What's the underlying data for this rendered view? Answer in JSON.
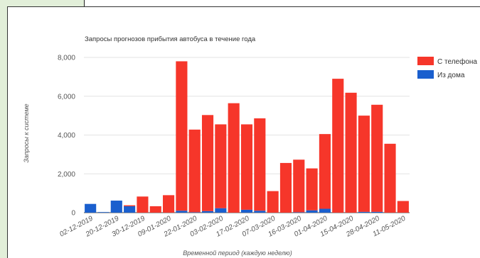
{
  "chart_data": {
    "type": "bar",
    "stacked": true,
    "title": "Запросы прогнозов прибытия автобуса в течение года",
    "xlabel": "Временной период (каждую неделю)",
    "ylabel": "Запросы к системе",
    "ylim": [
      0,
      8000
    ],
    "yticks": [
      "0",
      "2,000",
      "4,000",
      "6,000",
      "8,000"
    ],
    "ytick_values": [
      0,
      2000,
      4000,
      6000,
      8000
    ],
    "grid": true,
    "legend_position": "right",
    "x_tick_labels": [
      "02-12-2019",
      "20-12-2019",
      "30-12-2019",
      "09-01-2020",
      "22-01-2020",
      "03-02-2020",
      "17-02-2020",
      "07-03-2020",
      "16-03-2020",
      "01-04-2020",
      "15-04-2020",
      "28-04-2020",
      "11-05-2020"
    ],
    "x_tick_bar_index": [
      0,
      2,
      4,
      6,
      8,
      10,
      12,
      14,
      16,
      18,
      20,
      22,
      24
    ],
    "series": [
      {
        "name": "Из дома",
        "color": "#1a5fce",
        "values": [
          450,
          30,
          620,
          330,
          0,
          0,
          0,
          100,
          20,
          80,
          230,
          0,
          150,
          100,
          0,
          0,
          20,
          120,
          200,
          0,
          0,
          40,
          40,
          0,
          0
        ]
      },
      {
        "name": "С телефона",
        "color": "#f6362a",
        "values": [
          0,
          0,
          0,
          50,
          830,
          330,
          900,
          7700,
          4260,
          4950,
          4320,
          5640,
          4400,
          4760,
          1110,
          2560,
          2710,
          2160,
          3850,
          6900,
          6180,
          4960,
          5520,
          3550,
          600
        ]
      }
    ]
  }
}
